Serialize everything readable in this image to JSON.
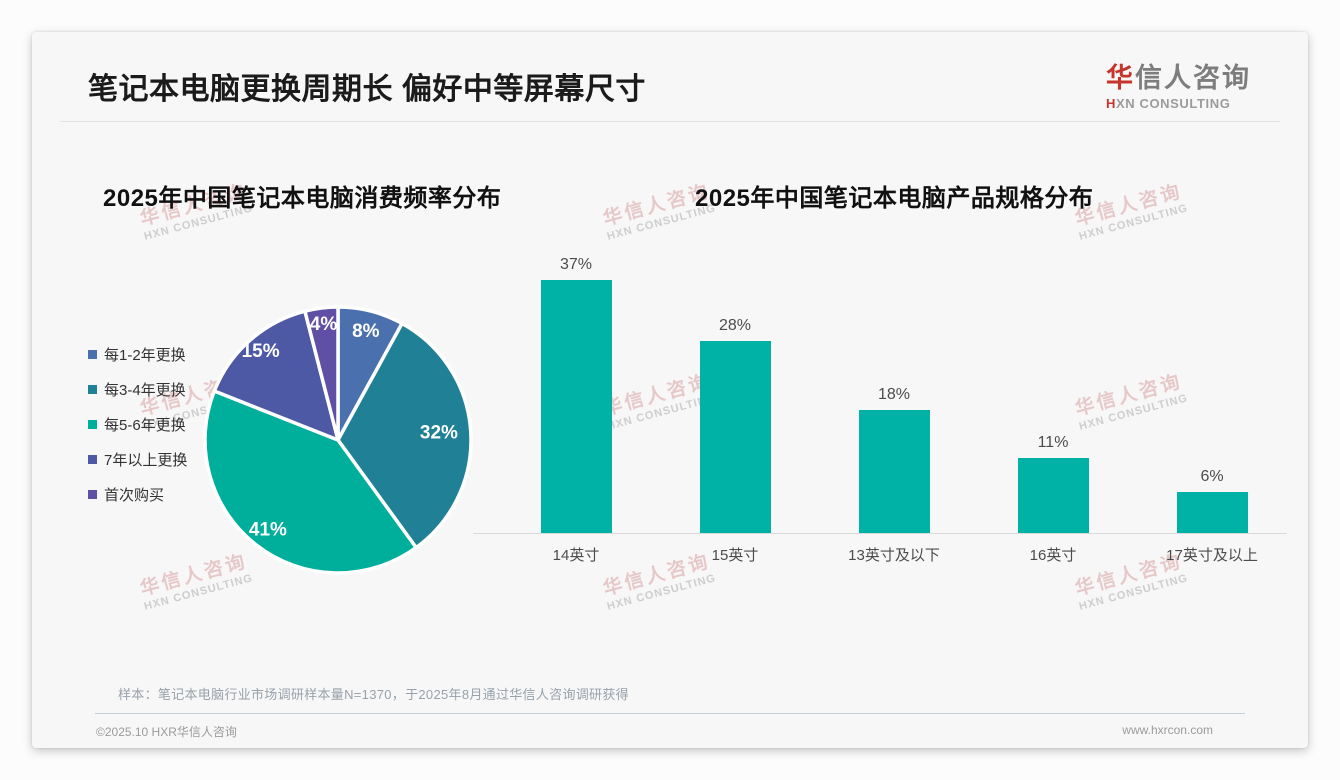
{
  "page": {
    "title": "笔记本电脑更换周期长 偏好中等屏幕尺寸",
    "logo": {
      "cn_first": "华",
      "cn_rest": "信人咨询",
      "en_first": "H",
      "en_rest": "XN CONSULTING"
    },
    "watermark": {
      "line1": "华信人咨询",
      "line2": "HXN CONSULTING"
    },
    "sample_note": "样本：笔记本电脑行业市场调研样本量N=1370，于2025年8月通过华信人咨询调研获得",
    "footer": {
      "left": "©2025.10 HXR华信人咨询",
      "right": "www.hxrcon.com"
    }
  },
  "chart_data": [
    {
      "type": "pie",
      "title": "2025年中国笔记本电脑消费频率分布",
      "labels": [
        "每1-2年更换",
        "每3-4年更换",
        "每5-6年更换",
        "7年以上更换",
        "首次购买"
      ],
      "values": [
        8,
        32,
        41,
        15,
        4
      ],
      "unit": "%",
      "colors": [
        "#4A70AE",
        "#1F8096",
        "#00AE9C",
        "#4D59A4",
        "#5F50A6"
      ],
      "slice_label_color": "#ffffff",
      "legend_position": "left",
      "start_angle_deg": 0,
      "direction": "clockwise"
    },
    {
      "type": "bar",
      "title": "2025年中国笔记本电脑产品规格分布",
      "categories": [
        "14英寸",
        "15英寸",
        "13英寸及以下",
        "16英寸",
        "17英寸及以上"
      ],
      "values": [
        37,
        28,
        18,
        11,
        6
      ],
      "unit": "%",
      "bar_color": "#00B1A5",
      "ylim": [
        0,
        40
      ],
      "grid": false,
      "value_labels": true,
      "legend_position": "none"
    }
  ]
}
